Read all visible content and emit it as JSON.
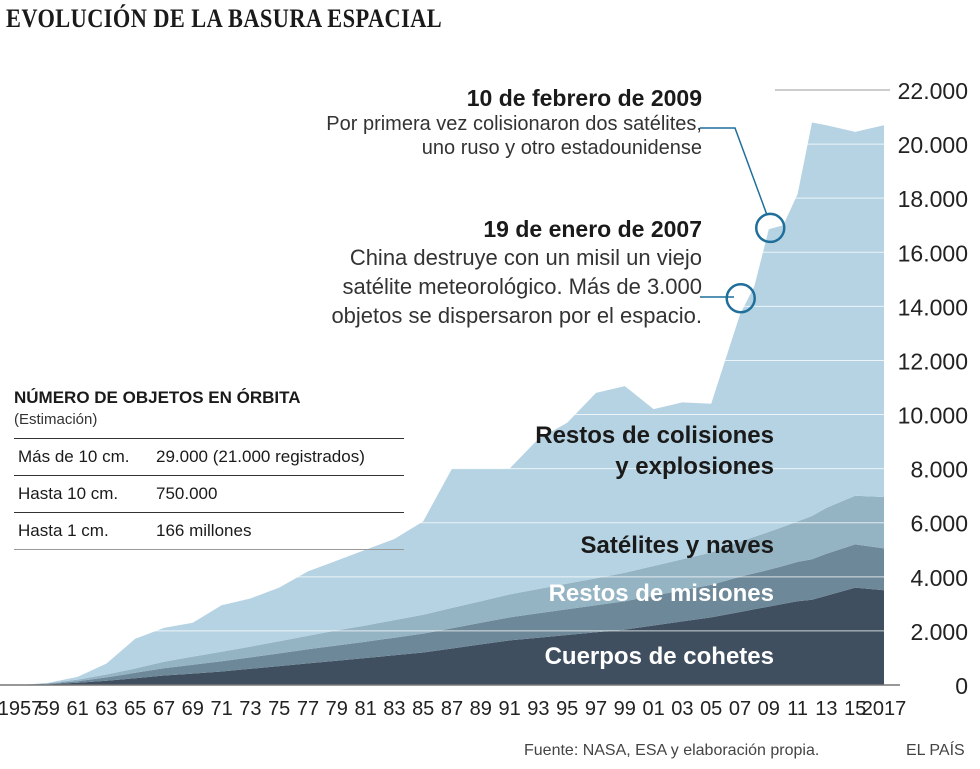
{
  "title": "EVOLUCIÓN DE LA BASURA ESPACIAL",
  "footer": {
    "source": "Fuente: NASA, ESA y elaboración propia.",
    "brand": "EL PAÍS"
  },
  "annotations": [
    {
      "date": "10 de febrero de 2009",
      "lines": [
        "Por primera vez colisionaron dos satélites,",
        "uno ruso y otro estadounidense"
      ]
    },
    {
      "date": "19 de enero de 2007",
      "lines": [
        "China destruye con un misil un viejo",
        "satélite meteorológico. Más de 3.000",
        "objetos se dispersaron por el espacio."
      ]
    }
  ],
  "legend_table": {
    "title": "NÚMERO DE OBJETOS EN ÓRBITA",
    "subtitle": "(Estimación)",
    "rows": [
      {
        "label": "Más de 10 cm.",
        "value": "29.000 (21.000 registrados)"
      },
      {
        "label": "Hasta 10 cm.",
        "value": "750.000"
      },
      {
        "label": "Hasta 1 cm.",
        "value": "166 millones"
      }
    ]
  },
  "chart_data": {
    "type": "area",
    "stacked": true,
    "x": [
      1957,
      1959,
      1961,
      1963,
      1965,
      1967,
      1969,
      1971,
      1973,
      1975,
      1977,
      1979,
      1981,
      1983,
      1985,
      1987,
      1989,
      1991,
      1993,
      1995,
      1997,
      1999,
      2001,
      2003,
      2005,
      2007,
      2008,
      2009,
      2010,
      2011,
      2012,
      2013,
      2015,
      2017
    ],
    "x_tick_labels": [
      "1957",
      "59",
      "61",
      "63",
      "65",
      "67",
      "69",
      "71",
      "73",
      "75",
      "77",
      "79",
      "81",
      "83",
      "85",
      "87",
      "89",
      "91",
      "93",
      "95",
      "97",
      "99",
      "01",
      "03",
      "05",
      "07",
      "09",
      "11",
      "13",
      "15",
      "2017"
    ],
    "x_tick_years": [
      1957,
      1959,
      1961,
      1963,
      1965,
      1967,
      1969,
      1971,
      1973,
      1975,
      1977,
      1979,
      1981,
      1983,
      1985,
      1987,
      1989,
      1991,
      1993,
      1995,
      1997,
      1999,
      2001,
      2003,
      2005,
      2007,
      2009,
      2011,
      2013,
      2015,
      2017
    ],
    "ylim": [
      0,
      22000
    ],
    "y_ticks": [
      "0",
      "2.000",
      "4.000",
      "6.000",
      "8.000",
      "10.000",
      "12.000",
      "14.000",
      "16.000",
      "18.000",
      "20.000",
      "22.000"
    ],
    "grid": true,
    "series": [
      {
        "name": "Cuerpos de cohetes",
        "color": "#3f4f60",
        "values": [
          0,
          30,
          80,
          160,
          250,
          350,
          420,
          500,
          600,
          700,
          800,
          900,
          1000,
          1100,
          1200,
          1350,
          1500,
          1650,
          1750,
          1850,
          1950,
          2050,
          2200,
          2350,
          2500,
          2700,
          2800,
          2900,
          3000,
          3100,
          3150,
          3300,
          3600,
          3500
        ]
      },
      {
        "name": "Restos de misiones",
        "color": "#6d8899",
        "values": [
          0,
          20,
          60,
          120,
          200,
          270,
          330,
          380,
          420,
          470,
          520,
          560,
          600,
          650,
          700,
          750,
          800,
          850,
          900,
          950,
          1000,
          1050,
          1100,
          1150,
          1200,
          1300,
          1330,
          1360,
          1400,
          1450,
          1500,
          1550,
          1600,
          1550
        ]
      },
      {
        "name": "Satélites y naves",
        "color": "#94b3c3",
        "values": [
          0,
          20,
          60,
          110,
          160,
          240,
          300,
          350,
          400,
          450,
          500,
          560,
          600,
          650,
          700,
          750,
          800,
          850,
          900,
          950,
          1000,
          1050,
          1100,
          1150,
          1200,
          1300,
          1350,
          1400,
          1450,
          1500,
          1600,
          1700,
          1800,
          1900
        ]
      },
      {
        "name": "Restos de colisiones y explosiones",
        "color": "#b5d3e3",
        "values": [
          0,
          10,
          100,
          400,
          1100,
          1250,
          1250,
          1720,
          1780,
          1980,
          2380,
          2580,
          2800,
          3000,
          3450,
          5150,
          4900,
          4650,
          5550,
          5950,
          6850,
          6900,
          5800,
          5800,
          5500,
          8400,
          9270,
          11190,
          11150,
          12100,
          14550,
          14150,
          13450,
          13750
        ]
      }
    ],
    "series_label_lines": [
      [
        "Cuerpos de cohetes"
      ],
      [
        "Restos de misiones"
      ],
      [
        "Satélites y naves"
      ],
      [
        "Restos de colisiones",
        "y explosiones"
      ]
    ],
    "annotated_points": [
      {
        "year": 2009.1,
        "value": 16900
      },
      {
        "year": 2007.05,
        "value": 14300
      }
    ]
  }
}
